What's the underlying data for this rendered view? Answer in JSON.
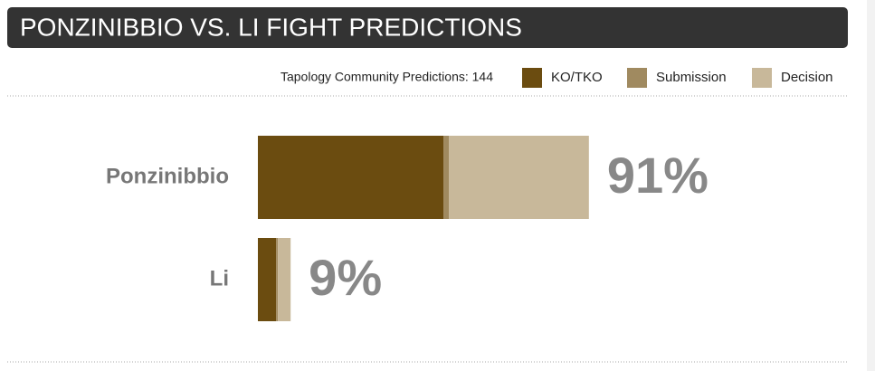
{
  "chart_data": {
    "type": "stacked-bar",
    "title": "PONZINIBBIO VS. LI FIGHT PREDICTIONS",
    "subtitle": "Tapology Community Predictions: 144",
    "categories": [
      "Ponzinibbio",
      "Li"
    ],
    "series": [
      {
        "name": "KO/TKO",
        "color": "#6b4c10",
        "values": [
          51,
          5
        ]
      },
      {
        "name": "Submission",
        "color": "#a08a60",
        "values": [
          1.5,
          0.5
        ]
      },
      {
        "name": "Decision",
        "color": "#c8b89a",
        "values": [
          38.5,
          3.5
        ]
      }
    ],
    "totals": [
      91,
      9
    ],
    "total_labels": [
      "91%",
      "9%"
    ],
    "xlim": [
      0,
      100
    ]
  }
}
